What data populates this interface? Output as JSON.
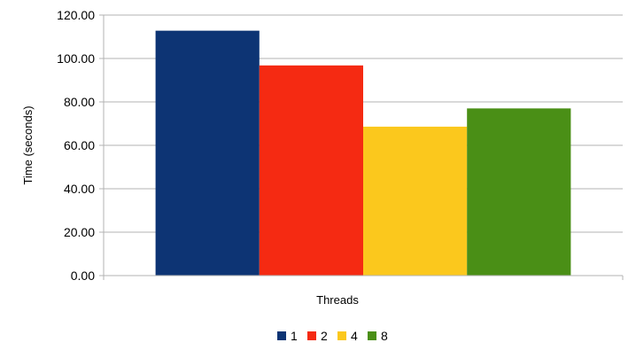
{
  "chart_data": {
    "type": "bar",
    "title": "",
    "xlabel": "Threads",
    "ylabel": "Time (seconds)",
    "ylim": [
      0,
      120
    ],
    "yticks": [
      "0.00",
      "20.00",
      "40.00",
      "60.00",
      "80.00",
      "100.00",
      "120.00"
    ],
    "categories": [
      ""
    ],
    "series": [
      {
        "name": "1",
        "values": [
          112.8
        ],
        "color": "#0d3474"
      },
      {
        "name": "2",
        "values": [
          96.8
        ],
        "color": "#f52a12"
      },
      {
        "name": "4",
        "values": [
          68.6
        ],
        "color": "#fbc81d"
      },
      {
        "name": "8",
        "values": [
          77.0
        ],
        "color": "#4a8f16"
      }
    ],
    "grid": true,
    "legend_position": "bottom"
  }
}
